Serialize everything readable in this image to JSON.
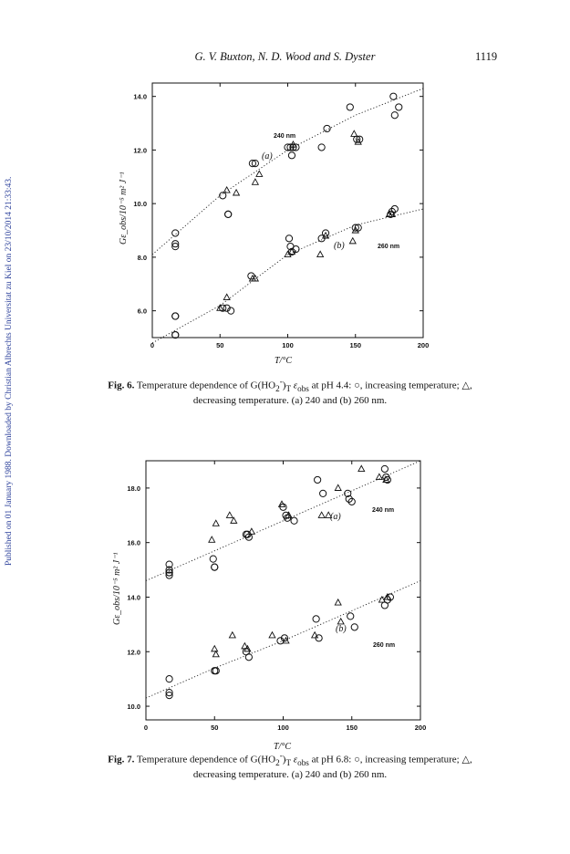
{
  "side_note": "Published on 01 January 1988. Downloaded by Christian Albrechts Universitat zu Kiel on 23/10/2014 21:33:43.",
  "header": {
    "authors": "G. V. Buxton, N. D. Wood and S. Dyster",
    "page": "1119"
  },
  "fig6": {
    "label": "Fig. 6.",
    "caption_a": "Temperature dependence of G(HO",
    "caption_b": ")",
    "caption_c": "at pH 4.4: ○, increasing temperature; △,",
    "caption_line2": "decreasing temperature. (a) 240 and (b) 260 nm."
  },
  "fig7": {
    "label": "Fig. 7.",
    "caption_a": "Temperature dependence of G(HO",
    "caption_b": ")",
    "caption_c": "at pH 6.8: ○, increasing temperature; △,",
    "caption_line2": "decreasing temperature. (a) 240 and (b) 260 nm."
  },
  "chart_data": [
    {
      "type": "scatter",
      "title": "Fig. 6",
      "xlabel": "T/°C",
      "ylabel": "Gε_obs/10⁻⁵ m² J⁻¹",
      "xlim": [
        0,
        200
      ],
      "ylim": [
        5.0,
        14.5
      ],
      "xticks": [
        0,
        50,
        100,
        150,
        200
      ],
      "yticks": [
        6.0,
        8.0,
        10.0,
        12.0,
        14.0
      ],
      "xtick_labels": [
        "0",
        "50",
        "100",
        "150",
        "200"
      ],
      "ytick_labels": [
        "6.0",
        "8.0",
        "10.0",
        "12.0",
        "14.0"
      ],
      "annotations": [
        "240 nm",
        "(a)",
        "(b)",
        "260 nm"
      ],
      "series": [
        {
          "marker": "circle",
          "x": [
            17,
            17,
            17,
            17,
            17,
            52,
            56,
            56,
            74,
            76,
            100,
            102,
            104,
            106,
            103,
            125,
            129,
            146,
            151,
            153,
            178,
            179,
            182
          ],
          "y": [
            5.8,
            5.1,
            8.9,
            8.5,
            8.4,
            10.3,
            9.6,
            9.6,
            11.5,
            11.5,
            12.1,
            12.1,
            12.1,
            12.1,
            11.8,
            12.1,
            12.8,
            13.6,
            12.4,
            12.4,
            14.0,
            13.3,
            13.6
          ]
        },
        {
          "marker": "triangle",
          "x": [
            55,
            62,
            76,
            79,
            104,
            149,
            152
          ],
          "y": [
            10.5,
            10.4,
            10.8,
            11.1,
            12.2,
            12.6,
            12.3
          ]
        },
        {
          "marker": "circle",
          "x": [
            17,
            17,
            52,
            55,
            58,
            73,
            101,
            102,
            103,
            106,
            125,
            128,
            150,
            152,
            176,
            177,
            179
          ],
          "y": [
            5.8,
            5.1,
            6.1,
            6.1,
            6.0,
            7.3,
            8.7,
            8.4,
            8.2,
            8.3,
            8.7,
            8.9,
            9.1,
            9.1,
            9.6,
            9.7,
            9.8
          ]
        },
        {
          "marker": "triangle",
          "x": [
            50,
            55,
            74,
            76,
            100,
            103,
            124,
            128,
            148,
            150,
            175,
            177
          ],
          "y": [
            6.1,
            6.5,
            7.2,
            7.2,
            8.1,
            8.2,
            8.1,
            8.8,
            8.6,
            9.0,
            9.6,
            9.6
          ]
        },
        {
          "marker": "line",
          "x": [
            0,
            50,
            100,
            150,
            200
          ],
          "y": [
            8.1,
            10.3,
            12.0,
            13.3,
            14.3
          ]
        },
        {
          "marker": "line",
          "x": [
            0,
            50,
            100,
            150,
            200
          ],
          "y": [
            4.8,
            6.2,
            8.1,
            9.2,
            9.8
          ]
        }
      ]
    },
    {
      "type": "scatter",
      "title": "Fig. 7",
      "xlabel": "T/°C",
      "ylabel": "Gε_obs/10⁻⁵ m² J⁻¹",
      "xlim": [
        0,
        200
      ],
      "ylim": [
        9.5,
        19.0
      ],
      "xticks": [
        0,
        50,
        100,
        150,
        200
      ],
      "yticks": [
        10.0,
        12.0,
        14.0,
        16.0,
        18.0
      ],
      "xtick_labels": [
        "0",
        "50",
        "100",
        "150",
        "200"
      ],
      "ytick_labels": [
        "10.0",
        "12.0",
        "14.0",
        "16.0",
        "18.0"
      ],
      "annotations": [
        "240 nm",
        "(a)",
        "(b)",
        "260 nm"
      ],
      "series": [
        {
          "marker": "circle",
          "x": [
            17,
            17,
            17,
            17,
            17,
            49,
            50,
            50,
            73,
            74,
            75,
            100,
            102,
            103,
            108,
            125,
            129,
            147,
            148,
            150,
            174,
            175,
            176
          ],
          "y": [
            15.2,
            15.0,
            14.9,
            14.8,
            14.9,
            15.4,
            15.1,
            15.1,
            16.3,
            16.3,
            16.2,
            17.3,
            17.0,
            16.9,
            16.8,
            18.3,
            17.8,
            17.8,
            17.6,
            17.5,
            18.7,
            18.4,
            18.3
          ]
        },
        {
          "marker": "triangle",
          "x": [
            48,
            51,
            61,
            64,
            77,
            99,
            104,
            128,
            133,
            140,
            157,
            170,
            175
          ],
          "y": [
            16.1,
            16.7,
            17.0,
            16.8,
            16.4,
            17.4,
            17.0,
            17.0,
            17.0,
            18.0,
            18.7,
            18.4,
            18.3
          ]
        },
        {
          "marker": "circle",
          "x": [
            17,
            17,
            17,
            50,
            51,
            73,
            75,
            98,
            101,
            124,
            126,
            149,
            152,
            174,
            176,
            178
          ],
          "y": [
            11.0,
            10.5,
            10.4,
            11.3,
            11.3,
            12.0,
            11.8,
            12.4,
            12.5,
            13.2,
            12.5,
            13.3,
            12.9,
            13.7,
            13.9,
            14.0
          ]
        },
        {
          "marker": "triangle",
          "x": [
            50,
            51,
            63,
            72,
            74,
            92,
            102,
            123,
            140,
            142,
            172,
            176
          ],
          "y": [
            12.1,
            11.9,
            12.6,
            12.2,
            12.1,
            12.6,
            12.4,
            12.6,
            13.8,
            13.1,
            13.9,
            14.0
          ]
        },
        {
          "marker": "line",
          "x": [
            0,
            50,
            100,
            150,
            200
          ],
          "y": [
            14.6,
            15.7,
            16.8,
            17.9,
            19.0
          ]
        },
        {
          "marker": "line",
          "x": [
            0,
            50,
            100,
            150,
            200
          ],
          "y": [
            10.3,
            11.4,
            12.4,
            13.5,
            14.6
          ]
        }
      ]
    }
  ]
}
